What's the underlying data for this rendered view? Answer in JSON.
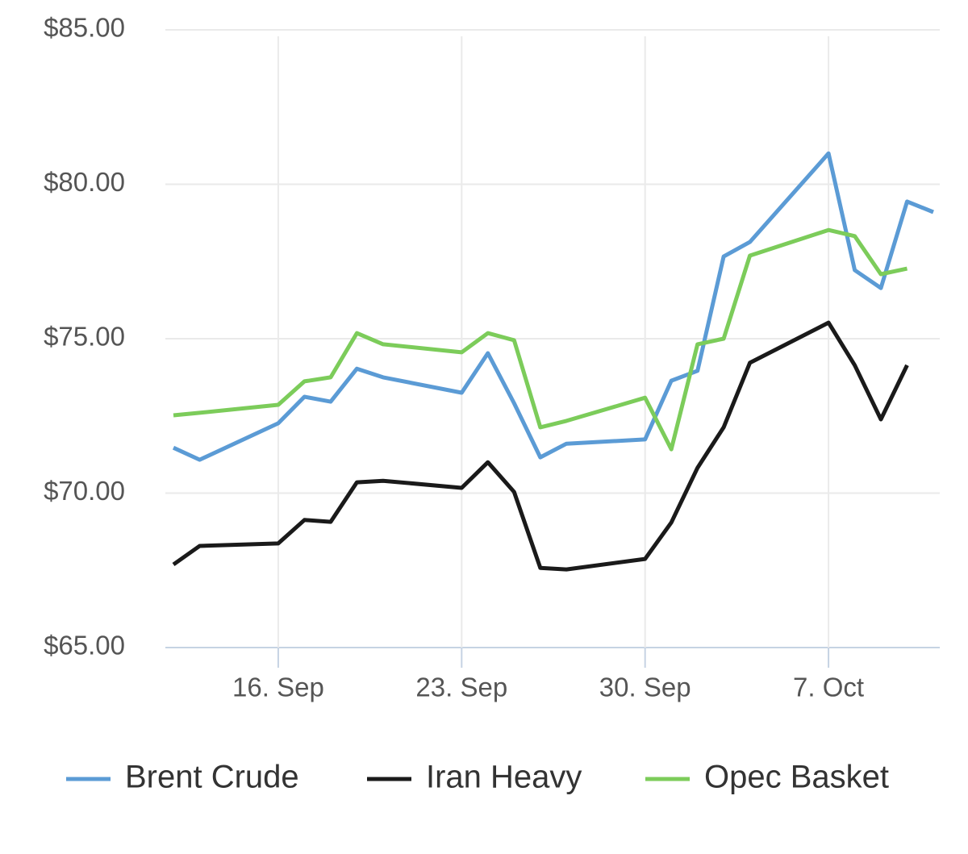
{
  "chart_data": {
    "type": "line",
    "x": [
      "12. Sep",
      "13. Sep",
      "16. Sep",
      "17. Sep",
      "18. Sep",
      "19. Sep",
      "20. Sep",
      "23. Sep",
      "24. Sep",
      "25. Sep",
      "26. Sep",
      "27. Sep",
      "30. Sep",
      "1. Oct",
      "2. Oct",
      "3. Oct",
      "4. Oct",
      "7. Oct",
      "8. Oct",
      "9. Oct",
      "10. Oct",
      "11. Oct"
    ],
    "xticks": [
      "16. Sep",
      "23. Sep",
      "30. Sep",
      "7. Oct"
    ],
    "ylim": [
      65,
      85
    ],
    "yticks": [
      {
        "value": 65,
        "label": "$65.00"
      },
      {
        "value": 70,
        "label": "$70.00"
      },
      {
        "value": 75,
        "label": "$75.00"
      },
      {
        "value": 80,
        "label": "$80.00"
      },
      {
        "value": 85,
        "label": "$85.00"
      }
    ],
    "grid": true,
    "legend": "bottom",
    "series": [
      {
        "name": "Brent Crude",
        "color": "#5b9bd5",
        "values": [
          71.47,
          71.08,
          72.26,
          73.12,
          72.96,
          74.03,
          73.75,
          73.25,
          74.53,
          72.91,
          71.16,
          71.6,
          71.74,
          73.64,
          73.96,
          77.66,
          78.13,
          81.0,
          77.22,
          76.64,
          79.44,
          79.1
        ]
      },
      {
        "name": "Iran Heavy",
        "color": "#1a1a1a",
        "values": [
          67.69,
          68.29,
          68.37,
          69.13,
          69.07,
          70.35,
          70.4,
          70.17,
          71.0,
          70.04,
          67.58,
          67.53,
          67.87,
          69.05,
          70.82,
          72.13,
          74.22,
          75.52,
          74.14,
          72.39,
          74.14,
          null
        ]
      },
      {
        "name": "Opec Basket",
        "color": "#7ccc5a",
        "values": [
          72.52,
          72.6,
          72.86,
          73.62,
          73.75,
          75.18,
          74.82,
          74.56,
          75.18,
          74.95,
          72.13,
          72.34,
          73.09,
          71.42,
          74.82,
          75.0,
          77.69,
          78.52,
          78.32,
          77.09,
          77.27,
          null
        ]
      }
    ]
  }
}
